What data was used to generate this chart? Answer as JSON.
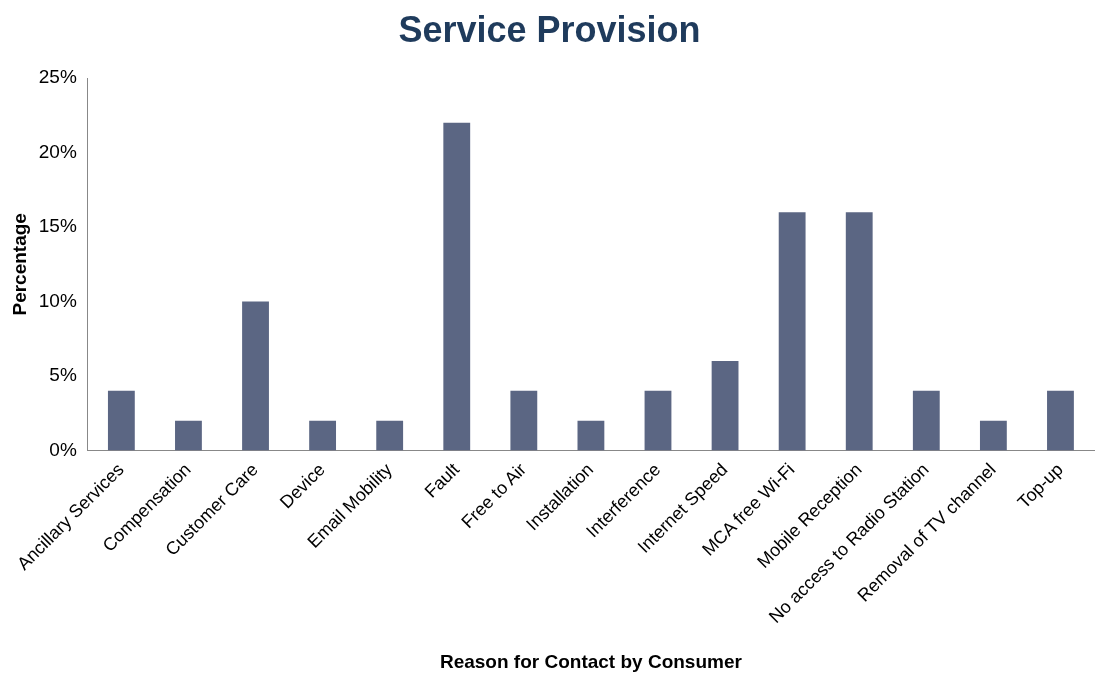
{
  "chart_data": {
    "type": "bar",
    "title": "Service Provision",
    "xlabel": "Reason for Contact by Consumer",
    "ylabel": "Percentage",
    "categories": [
      "Ancillary Services",
      "Compensation",
      "Customer Care",
      "Device",
      "Email Mobility",
      "Fault",
      "Free to Air",
      "Installation",
      "Interference",
      "Internet Speed",
      "MCA free Wi-Fi",
      "Mobile Reception",
      "No access to Radio Station",
      "Removal of TV channel",
      "Top-up"
    ],
    "values": [
      4,
      2,
      10,
      2,
      2,
      22,
      4,
      2,
      4,
      6,
      16,
      16,
      4,
      2,
      4
    ],
    "color": "#5b6683",
    "ylim": [
      0,
      25
    ],
    "yticks": [
      {
        "value": 0,
        "label": "0%"
      },
      {
        "value": 5,
        "label": "5%"
      },
      {
        "value": 10,
        "label": "10%"
      },
      {
        "value": 15,
        "label": "15%"
      },
      {
        "value": 20,
        "label": "20%"
      },
      {
        "value": 25,
        "label": "25%"
      }
    ],
    "grid": false,
    "legend": false
  }
}
